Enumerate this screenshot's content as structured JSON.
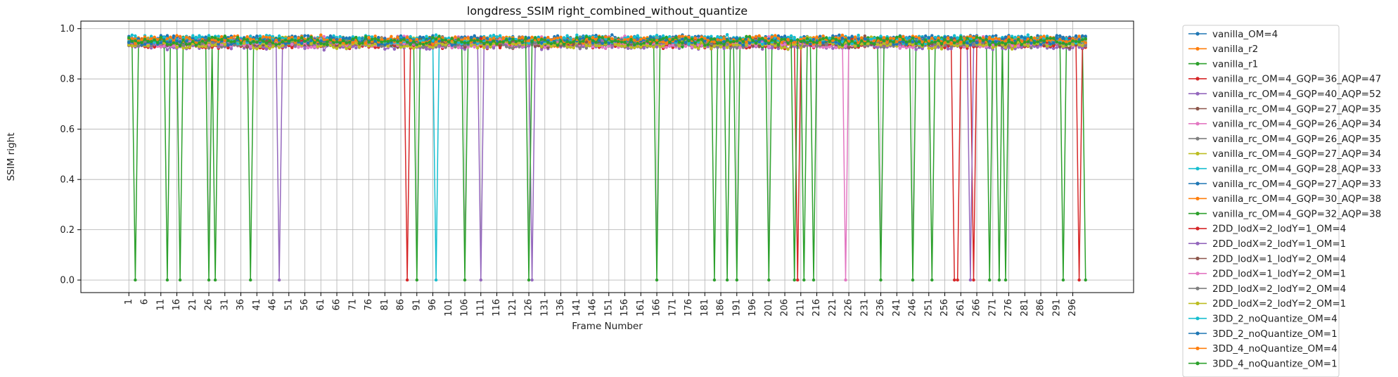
{
  "chart_data": {
    "type": "line",
    "title": "longdress_SSIM right_combined_without_quantize",
    "xlabel": "Frame Number",
    "ylabel": "SSIM right",
    "xlim": [
      -14,
      315
    ],
    "ylim": [
      -0.05,
      1.03
    ],
    "x_ticks": [
      1,
      6,
      11,
      16,
      21,
      26,
      31,
      36,
      41,
      46,
      51,
      56,
      61,
      66,
      71,
      76,
      81,
      86,
      91,
      96,
      101,
      106,
      111,
      116,
      121,
      126,
      131,
      136,
      141,
      146,
      151,
      156,
      161,
      166,
      171,
      176,
      181,
      186,
      191,
      196,
      201,
      206,
      211,
      216,
      221,
      226,
      231,
      236,
      241,
      246,
      251,
      256,
      261,
      266,
      271,
      276,
      281,
      286,
      291,
      296
    ],
    "y_ticks": [
      "0.0",
      "0.2",
      "0.4",
      "0.6",
      "0.8",
      "1.0"
    ],
    "y_tick_values": [
      0,
      0.2,
      0.4,
      0.6,
      0.8,
      1.0
    ],
    "grid": true,
    "legend_position": "outside-right",
    "frame_range": [
      1,
      300
    ],
    "series": [
      {
        "name": "vanilla_OM=4",
        "color": "#1f77b4",
        "base": 0.955,
        "drops": []
      },
      {
        "name": "vanilla_r2",
        "color": "#ff7f0e",
        "base": 0.95,
        "drops": []
      },
      {
        "name": "vanilla_r1",
        "color": "#2ca02c",
        "base": 0.948,
        "drops": [
          3,
          13,
          17,
          26,
          28,
          39,
          91,
          106,
          166,
          184,
          188,
          191,
          201,
          212,
          215,
          236,
          246,
          252,
          270,
          273,
          275,
          293,
          300
        ]
      },
      {
        "name": "vanilla_rc_OM=4_GQP=36_AQP=47",
        "color": "#d62728",
        "base": 0.94,
        "drops": [
          88,
          210,
          259,
          260,
          265,
          298
        ]
      },
      {
        "name": "vanilla_rc_OM=4_GQP=40_AQP=52",
        "color": "#9467bd",
        "base": 0.935,
        "drops": [
          48,
          111,
          127,
          264
        ]
      },
      {
        "name": "vanilla_rc_OM=4_GQP=27_AQP=35",
        "color": "#8c564b",
        "base": 0.952,
        "drops": []
      },
      {
        "name": "vanilla_rc_OM=4_GQP=26_AQP=34",
        "color": "#e377c2",
        "base": 0.953,
        "drops": [
          225
        ]
      },
      {
        "name": "vanilla_rc_OM=4_GQP=26_AQP=35",
        "color": "#7f7f7f",
        "base": 0.951,
        "drops": []
      },
      {
        "name": "vanilla_rc_OM=4_GQP=27_AQP=34",
        "color": "#bcbd22",
        "base": 0.95,
        "drops": []
      },
      {
        "name": "vanilla_rc_OM=4_GQP=28_AQP=33",
        "color": "#17becf",
        "base": 0.956,
        "drops": [
          97
        ]
      },
      {
        "name": "vanilla_rc_OM=4_GQP=27_AQP=33",
        "color": "#1f77b4",
        "base": 0.957,
        "drops": []
      },
      {
        "name": "vanilla_rc_OM=4_GQP=30_AQP=38",
        "color": "#ff7f0e",
        "base": 0.949,
        "drops": []
      },
      {
        "name": "vanilla_rc_OM=4_GQP=32_AQP=38",
        "color": "#2ca02c",
        "base": 0.947,
        "drops": []
      },
      {
        "name": "2DD_lodX=2_lodY=1_OM=4",
        "color": "#d62728",
        "base": 0.942,
        "drops": []
      },
      {
        "name": "2DD_lodX=2_lodY=1_OM=1",
        "color": "#9467bd",
        "base": 0.938,
        "drops": []
      },
      {
        "name": "2DD_lodX=1_lodY=2_OM=4",
        "color": "#8c564b",
        "base": 0.944,
        "drops": []
      },
      {
        "name": "2DD_lodX=1_lodY=2_OM=1",
        "color": "#e377c2",
        "base": 0.94,
        "drops": []
      },
      {
        "name": "2DD_lodX=2_lodY=2_OM=4",
        "color": "#7f7f7f",
        "base": 0.943,
        "drops": []
      },
      {
        "name": "2DD_lodX=2_lodY=2_OM=1",
        "color": "#bcbd22",
        "base": 0.939,
        "drops": []
      },
      {
        "name": "3DD_2_noQuantize_OM=4",
        "color": "#17becf",
        "base": 0.958,
        "drops": []
      },
      {
        "name": "3DD_2_noQuantize_OM=1",
        "color": "#1f77b4",
        "base": 0.954,
        "drops": []
      },
      {
        "name": "3DD_4_noQuantize_OM=4",
        "color": "#ff7f0e",
        "base": 0.957,
        "drops": []
      },
      {
        "name": "3DD_4_noQuantize_OM=1",
        "color": "#2ca02c",
        "base": 0.952,
        "drops": [
          126,
          209
        ]
      }
    ]
  }
}
